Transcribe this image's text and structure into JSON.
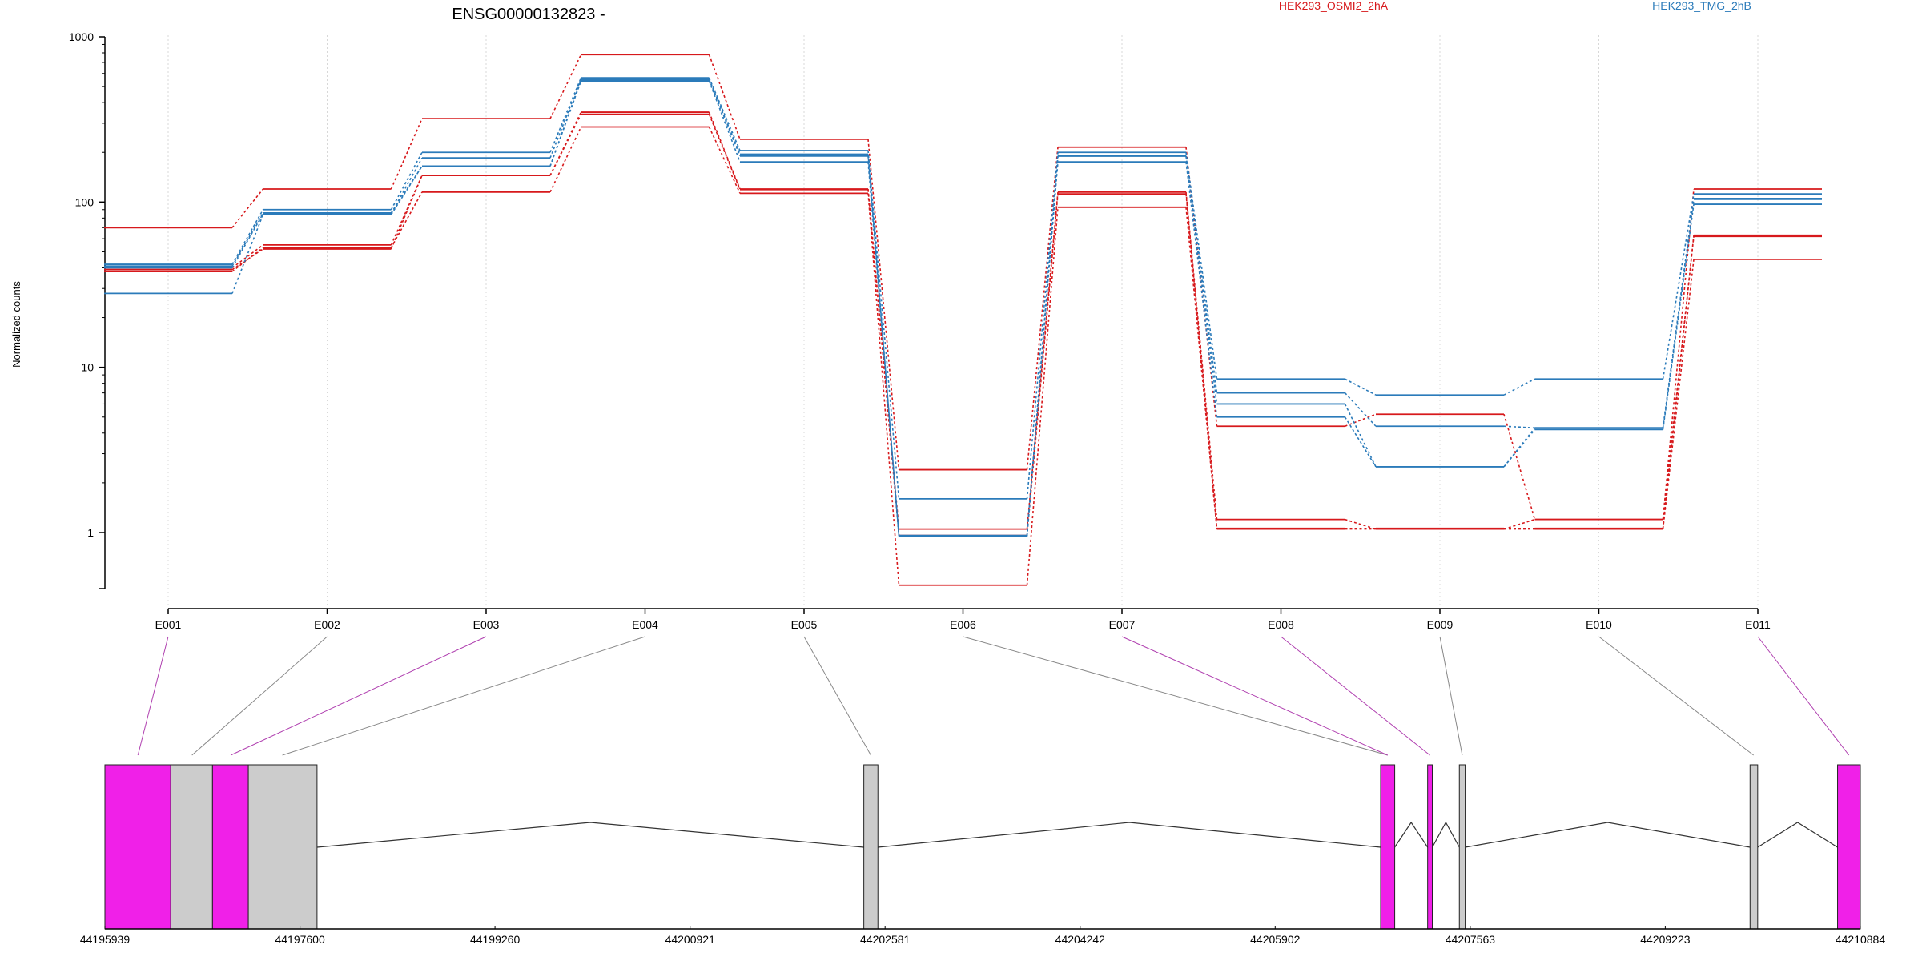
{
  "chart_data": {
    "type": "line",
    "title": "ENSG00000132823 -",
    "ylabel": "Normalized counts",
    "xlabel": "",
    "y_scale": "log",
    "yticks": [
      "1000",
      "100",
      "10",
      "1"
    ],
    "categories": [
      "E001",
      "E002",
      "E003",
      "E004",
      "E005",
      "E006",
      "E007",
      "E008",
      "E009",
      "E010",
      "E011"
    ],
    "legend_placement": "top-right",
    "colors": {
      "HEK293_OSMI2_2hA": "#d7191c",
      "HEK293_TMG_2hB": "#2b7bba"
    },
    "series": [
      {
        "name": "HEK293_OSMI2_2hA",
        "color": "#d7191c",
        "values": [
          70,
          120,
          320,
          780,
          240,
          2.4,
          215,
          4.4,
          5.2,
          1.2,
          120
        ]
      },
      {
        "name": "HEK293_OSMI2_2hA",
        "color": "#d7191c",
        "values": [
          40,
          55,
          145,
          350,
          120,
          1.05,
          115,
          1.2,
          1.05,
          1.2,
          62
        ]
      },
      {
        "name": "HEK293_OSMI2_2hA",
        "color": "#d7191c",
        "values": [
          38,
          53,
          115,
          285,
          113,
          0.48,
          93,
          1.05,
          1.05,
          1.05,
          45
        ]
      },
      {
        "name": "HEK293_OSMI2_2hA",
        "color": "#d7191c",
        "values": [
          39,
          52,
          145,
          340,
          119,
          0.96,
          112,
          1.06,
          1.06,
          1.06,
          63
        ]
      },
      {
        "name": "HEK293_TMG_2hB",
        "color": "#2b7bba",
        "values": [
          42,
          90,
          200,
          565,
          205,
          1.6,
          200,
          8.5,
          6.8,
          8.5,
          112
        ]
      },
      {
        "name": "HEK293_TMG_2hB",
        "color": "#2b7bba",
        "values": [
          40,
          85,
          185,
          555,
          195,
          0.95,
          190,
          7.0,
          4.4,
          4.3,
          105
        ]
      },
      {
        "name": "HEK293_TMG_2hB",
        "color": "#2b7bba",
        "values": [
          41,
          86,
          165,
          550,
          190,
          0.95,
          190,
          6.0,
          2.5,
          4.3,
          104
        ]
      },
      {
        "name": "HEK293_TMG_2hB",
        "color": "#2b7bba",
        "values": [
          28,
          84,
          165,
          540,
          175,
          0.96,
          175,
          5.0,
          2.5,
          4.2,
          97
        ]
      }
    ],
    "gene_model": {
      "coord_range": [
        44195939,
        44210884
      ],
      "coord_ticks": [
        "44195939",
        "44197600",
        "44199260",
        "44200921",
        "44202581",
        "44204242",
        "44205902",
        "44207563",
        "44209223",
        "44210884"
      ],
      "exons": [
        {
          "start": 44195939,
          "end": 44196500,
          "color": "#f020e8"
        },
        {
          "start": 44196500,
          "end": 44196855,
          "color": "#cccccc"
        },
        {
          "start": 44196855,
          "end": 44197160,
          "color": "#f020e8"
        },
        {
          "start": 44197160,
          "end": 44197745,
          "color": "#cccccc"
        },
        {
          "start": 44202400,
          "end": 44202520,
          "color": "#cccccc"
        },
        {
          "start": 44206800,
          "end": 44206920,
          "color": "#f020e8"
        },
        {
          "start": 44207200,
          "end": 44207240,
          "color": "#f020e8"
        },
        {
          "start": 44207470,
          "end": 44207520,
          "color": "#cccccc"
        },
        {
          "start": 44209945,
          "end": 44210010,
          "color": "#cccccc"
        },
        {
          "start": 44210690,
          "end": 44210884,
          "color": "#f020e8"
        }
      ],
      "introns": [
        [
          44197745,
          44202400
        ],
        [
          44202520,
          44206800
        ],
        [
          44206920,
          44207200
        ],
        [
          44207240,
          44207470
        ],
        [
          44207520,
          44209945
        ],
        [
          44210010,
          44210690
        ]
      ],
      "connectors": [
        {
          "exon": "E001",
          "coord": 44196220,
          "color": "#b040b0"
        },
        {
          "exon": "E002",
          "coord": 44196680,
          "color": "#888888"
        },
        {
          "exon": "E003",
          "coord": 44197010,
          "color": "#b040b0"
        },
        {
          "exon": "E004",
          "coord": 44197450,
          "color": "#888888"
        },
        {
          "exon": "E005",
          "coord": 44202460,
          "color": "#888888"
        },
        {
          "exon": "E006",
          "coord": 44206860,
          "color": "#888888"
        },
        {
          "exon": "E007",
          "coord": 44206860,
          "color": "#b040b0"
        },
        {
          "exon": "E008",
          "coord": 44207220,
          "color": "#b040b0"
        },
        {
          "exon": "E009",
          "coord": 44207495,
          "color": "#888888"
        },
        {
          "exon": "E010",
          "coord": 44209975,
          "color": "#888888"
        },
        {
          "exon": "E011",
          "coord": 44210787,
          "color": "#b040b0"
        }
      ]
    }
  }
}
